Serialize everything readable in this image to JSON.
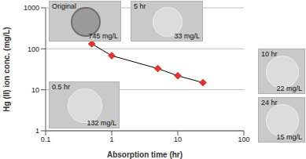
{
  "chart_data": {
    "type": "line",
    "x_label": "Absorption time (hr)",
    "y_label": "Hg (II) ion conc. (mg/L)",
    "x": [
      0.5,
      1,
      5,
      10,
      24
    ],
    "values": [
      132,
      68,
      33,
      22,
      15
    ],
    "color": "#e8312a",
    "marker": "diamond",
    "line_style": "solid",
    "log": true,
    "grid": true,
    "xlim": [
      0.1,
      100
    ],
    "xticks": [
      0.1,
      1,
      10,
      100
    ],
    "ylim": [
      1,
      1000
    ],
    "yticks": [
      1,
      10,
      100,
      1000
    ],
    "annotations": [
      {
        "title": "Original",
        "text": "745 mg/L"
      },
      {
        "title": "5 hr",
        "text": "33 mg/L"
      },
      {
        "title": "0.5 hr",
        "text": "132 mg/L"
      },
      {
        "title": "10 hr",
        "text": "22 mg/L"
      },
      {
        "title": "24 hr",
        "text": "15 mg/L"
      }
    ]
  }
}
